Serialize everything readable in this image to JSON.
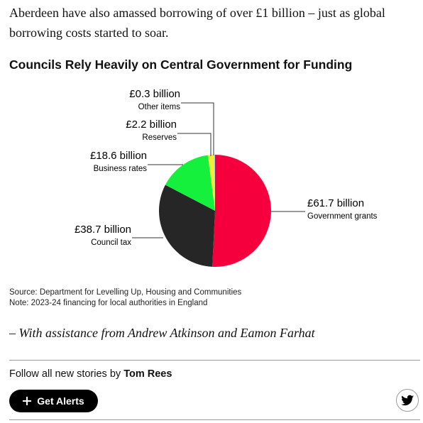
{
  "article": {
    "paragraph": "Aberdeen have also amassed borrowing of over £1 billion – just as global borrowing costs started to soar."
  },
  "chart_data": {
    "type": "pie",
    "title": "Councils Rely Heavily on Central Government for Funding",
    "categories": [
      "Government grants",
      "Council tax",
      "Business rates",
      "Reserves",
      "Other items"
    ],
    "values": [
      61.7,
      38.7,
      18.6,
      2.2,
      0.3
    ],
    "value_labels": [
      "£61.7 billion",
      "£38.7 billion",
      "£18.6 billion",
      "£2.2 billion",
      "£0.3 billion"
    ],
    "colors": [
      "#f5003d",
      "#262626",
      "#14f03c",
      "#f0f03c",
      "#a8c8e8"
    ],
    "source": "Source: Department for Levelling Up, Housing and Communities",
    "note": "Note: 2023-24 financing for local authorities in England"
  },
  "credit": "– With assistance from Andrew Atkinson and Eamon Farhat",
  "follow": {
    "text": "Follow all new stories by",
    "author": "Tom Rees"
  },
  "button": {
    "label": "Get Alerts"
  }
}
